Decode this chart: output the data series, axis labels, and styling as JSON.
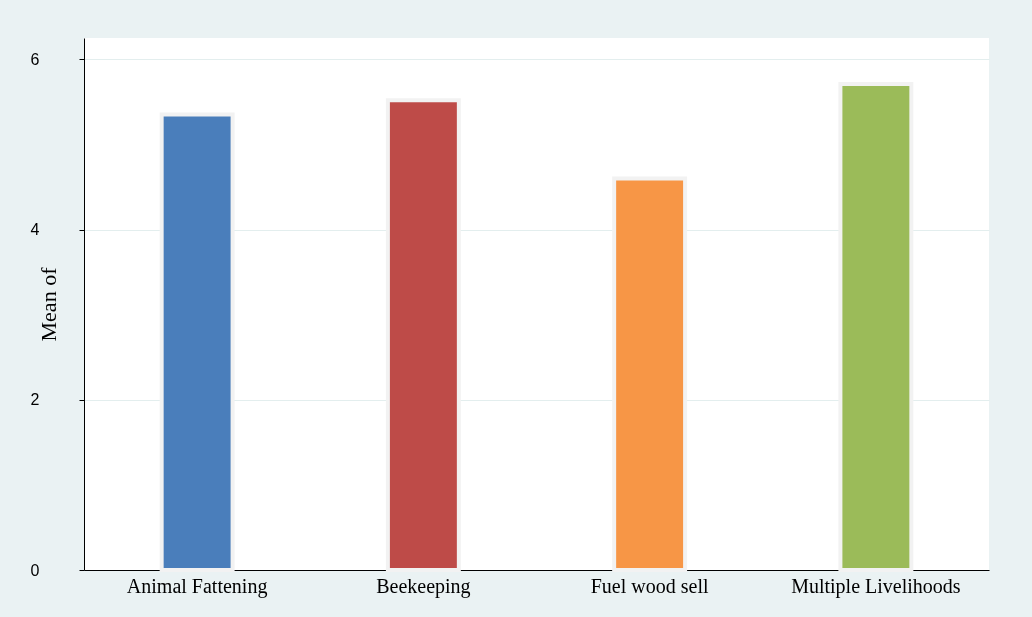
{
  "chart_data": {
    "type": "bar",
    "ylabel": "Mean of",
    "categories": [
      "Animal Fattening",
      "Beekeeping",
      "Fuel wood sell",
      "Multiple Livelihoods"
    ],
    "values": [
      5.35,
      5.52,
      4.6,
      5.71
    ],
    "colors": [
      "#4a7ebb",
      "#be4b48",
      "#f79646",
      "#9bbb59"
    ],
    "ylim": [
      0,
      6.25
    ],
    "yticks": [
      0,
      2,
      4,
      6
    ],
    "grid": "y",
    "legend": false
  }
}
